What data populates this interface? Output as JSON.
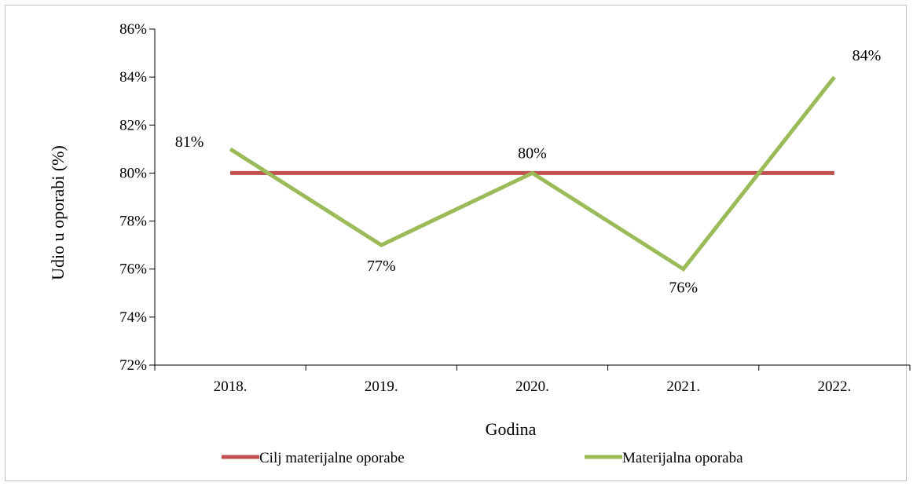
{
  "chart_data": {
    "type": "line",
    "categories": [
      "2018.",
      "2019.",
      "2020.",
      "2021.",
      "2022."
    ],
    "series": [
      {
        "name": "Cilj materijalne oporabe",
        "values": [
          80,
          80,
          80,
          80,
          80
        ],
        "color": "#c0504d",
        "data_labels": [
          "",
          "",
          "",
          "",
          ""
        ]
      },
      {
        "name": "Materijalna oporaba",
        "values": [
          81,
          77,
          80,
          76,
          84
        ],
        "color": "#9bbb59",
        "data_labels": [
          "81%",
          "77%",
          "80%",
          "76%",
          "84%"
        ]
      }
    ],
    "xlabel": "Godina",
    "ylabel": "Udio u oporabi (%)",
    "ylim": [
      72,
      86
    ],
    "yticks": [
      72,
      74,
      76,
      78,
      80,
      82,
      84,
      86
    ],
    "ytick_labels": [
      "72%",
      "74%",
      "76%",
      "78%",
      "80%",
      "82%",
      "84%",
      "86%"
    ],
    "grid": false,
    "legend_position": "bottom"
  }
}
